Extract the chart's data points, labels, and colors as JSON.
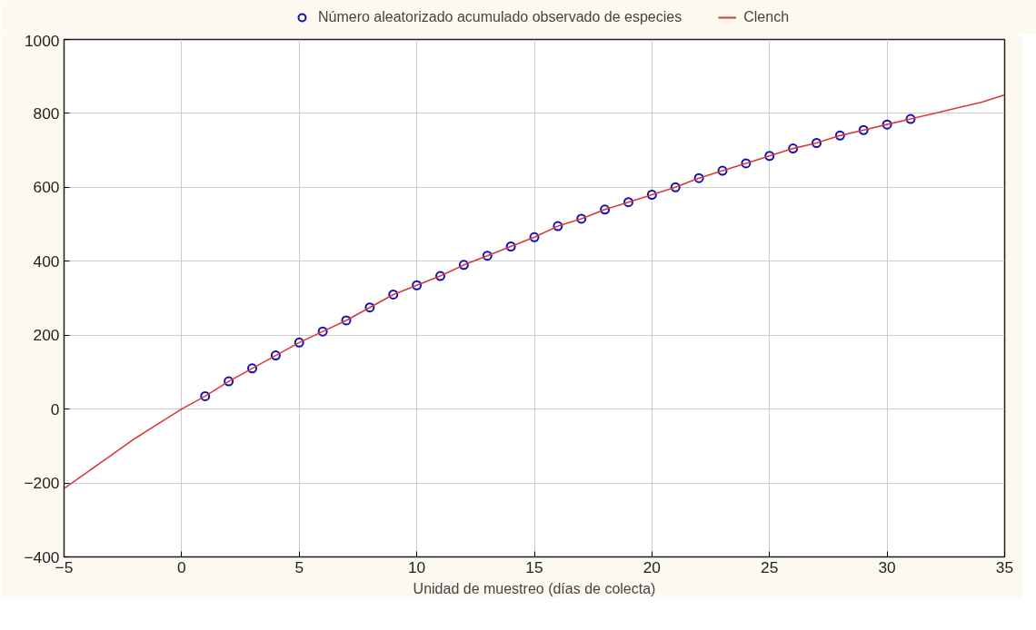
{
  "chart_data": {
    "type": "scatter",
    "xlabel": "Unidad de muestreo (días de colecta)",
    "xlim": [
      -5,
      35
    ],
    "xticks": [
      -5,
      0,
      5,
      10,
      15,
      20,
      25,
      30,
      35
    ],
    "ylim": [
      -400,
      1000
    ],
    "yticks": [
      -400,
      -200,
      0,
      200,
      400,
      600,
      800,
      1000
    ],
    "grid": true,
    "legend": "top",
    "series": [
      {
        "name": "Número aleatorizado acumulado observado de especies",
        "marker": "circle",
        "color": "#1010b0",
        "x": [
          1,
          2,
          3,
          4,
          5,
          6,
          7,
          8,
          9,
          10,
          11,
          12,
          13,
          14,
          15,
          16,
          17,
          18,
          19,
          20,
          21,
          22,
          23,
          24,
          25,
          26,
          27,
          28,
          29,
          30,
          31
        ],
        "values": [
          35,
          75,
          110,
          145,
          180,
          210,
          240,
          275,
          310,
          335,
          360,
          390,
          415,
          440,
          465,
          495,
          515,
          540,
          560,
          580,
          600,
          625,
          645,
          665,
          685,
          705,
          720,
          740,
          755,
          770,
          785
        ]
      },
      {
        "name": "Clench",
        "type": "line",
        "color": "#d83a3a",
        "line_style": "solid",
        "x": [
          -5,
          -4,
          -3,
          -2,
          -1,
          0,
          1,
          2,
          3,
          4,
          5,
          6,
          7,
          8,
          9,
          10,
          11,
          12,
          13,
          14,
          15,
          16,
          17,
          18,
          19,
          20,
          21,
          22,
          23,
          24,
          25,
          26,
          27,
          28,
          29,
          30,
          31,
          32,
          33,
          34,
          35
        ],
        "values": [
          -215,
          -170,
          -125,
          -80,
          -40,
          0,
          35,
          75,
          110,
          145,
          180,
          210,
          240,
          275,
          310,
          335,
          360,
          390,
          415,
          440,
          465,
          495,
          515,
          540,
          560,
          580,
          600,
          625,
          645,
          665,
          685,
          705,
          720,
          740,
          755,
          770,
          785,
          800,
          815,
          830,
          850
        ]
      }
    ]
  }
}
